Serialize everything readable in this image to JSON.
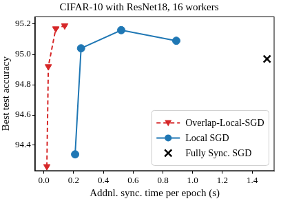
{
  "chart_data": {
    "type": "scatter",
    "title": "CIFAR-10 with ResNet18, 16 workers",
    "x_label": "Addnl. sync. time per epoch (s)",
    "y_label": "Best test accuracy",
    "xlim": [
      -0.06,
      1.55
    ],
    "xticks": [
      {
        "value": 0,
        "label": "0.0"
      },
      0.2,
      0.4,
      0.6,
      0.8,
      {
        "value": 1,
        "label": "1.0"
      },
      1.2,
      1.4
    ],
    "ylim": [
      94.23,
      95.25
    ],
    "yticks": [
      94.4,
      94.6,
      94.8,
      {
        "value": 95,
        "label": "95.0"
      },
      95.2
    ],
    "grid": false,
    "legend": "lower right",
    "series": [
      {
        "name": "Overlap-Local-SGD",
        "color": "#d62728",
        "marker": "triangle_down",
        "line_style": "dashed",
        "x": [
          0.02,
          0.03,
          0.08,
          0.14
        ],
        "values": [
          94.26,
          94.92,
          95.17,
          95.19
        ]
      },
      {
        "name": "Local SGD",
        "color": "#1f77b4",
        "marker": "circle",
        "line_style": "solid",
        "x": [
          0.21,
          0.25,
          0.52,
          0.89
        ],
        "values": [
          94.34,
          95.04,
          95.16,
          95.09
        ]
      },
      {
        "name": "Fully Sync. SGD",
        "color": "#000000",
        "marker": "x",
        "line_style": "none",
        "x": [
          1.5
        ],
        "values": [
          94.97
        ]
      }
    ]
  }
}
